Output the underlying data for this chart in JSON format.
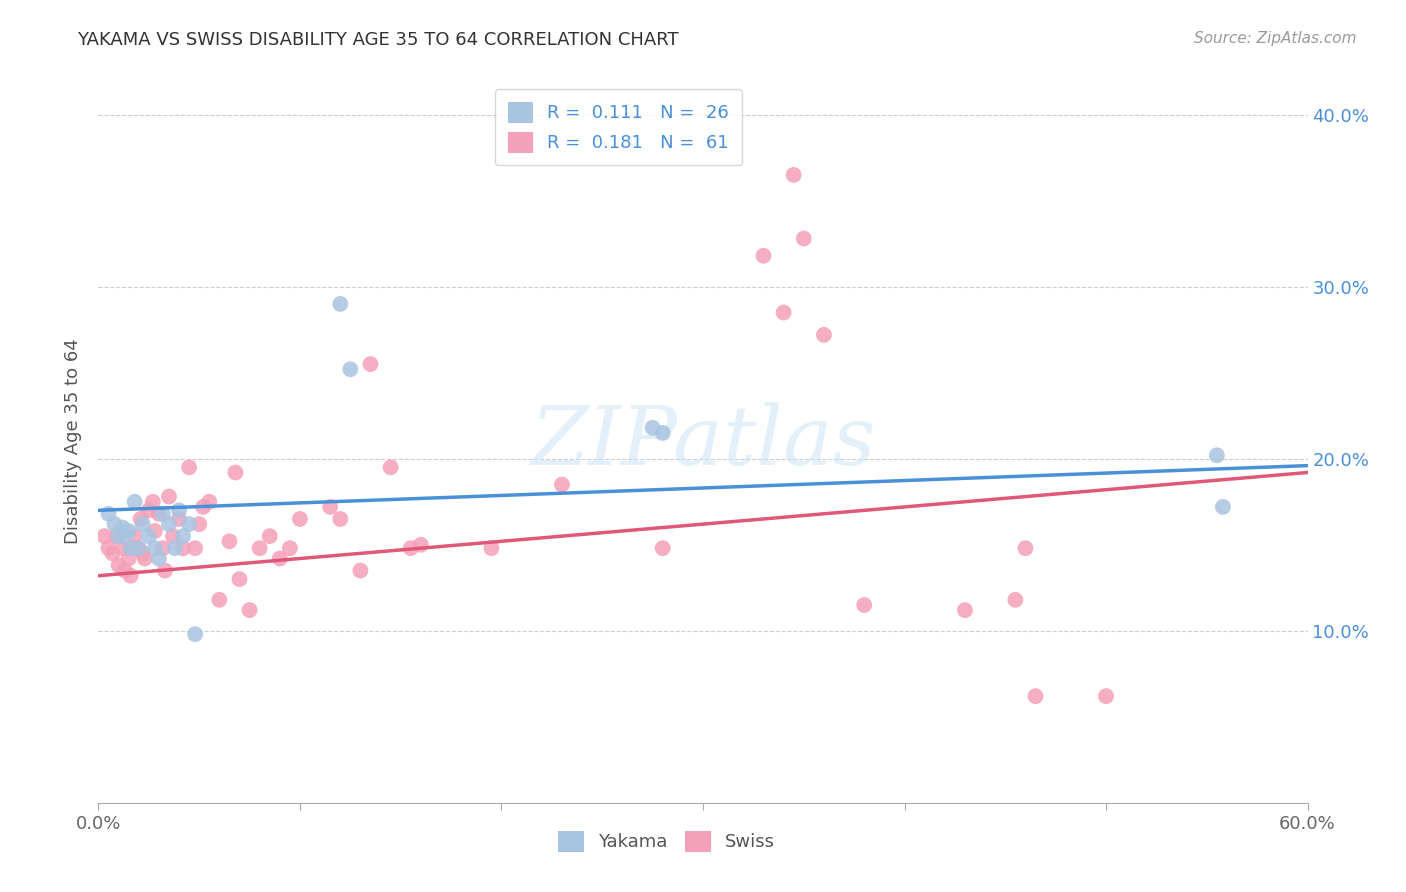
{
  "title": "YAKAMA VS SWISS DISABILITY AGE 35 TO 64 CORRELATION CHART",
  "source": "Source: ZipAtlas.com",
  "ylabel": "Disability Age 35 to 64",
  "xlim": [
    0.0,
    0.6
  ],
  "ylim": [
    0.0,
    0.42
  ],
  "xticks": [
    0.0,
    0.1,
    0.2,
    0.3,
    0.4,
    0.5,
    0.6
  ],
  "xtick_labels": [
    "0.0%",
    "",
    "",
    "",
    "",
    "",
    "60.0%"
  ],
  "yticks": [
    0.1,
    0.2,
    0.3,
    0.4
  ],
  "ytick_labels_right": [
    "10.0%",
    "20.0%",
    "30.0%",
    "40.0%"
  ],
  "legend_r_yakama": "0.111",
  "legend_n_yakama": "26",
  "legend_r_swiss": "0.181",
  "legend_n_swiss": "61",
  "yakama_color": "#a8c4e0",
  "swiss_color": "#f4a0b8",
  "line_yakama_color": "#4a90d9",
  "line_swiss_color": "#e05878",
  "watermark": "ZIPatlas",
  "yakama_x": [
    0.005,
    0.008,
    0.01,
    0.012,
    0.013,
    0.015,
    0.016,
    0.018,
    0.02,
    0.022,
    0.025,
    0.028,
    0.03,
    0.032,
    0.035,
    0.038,
    0.04,
    0.042,
    0.045,
    0.048,
    0.12,
    0.125,
    0.275,
    0.28,
    0.555,
    0.558
  ],
  "yakama_y": [
    0.168,
    0.162,
    0.155,
    0.16,
    0.155,
    0.158,
    0.148,
    0.175,
    0.148,
    0.162,
    0.155,
    0.148,
    0.142,
    0.168,
    0.162,
    0.148,
    0.17,
    0.155,
    0.162,
    0.098,
    0.29,
    0.252,
    0.218,
    0.215,
    0.202,
    0.172
  ],
  "swiss_x": [
    0.003,
    0.005,
    0.007,
    0.009,
    0.01,
    0.012,
    0.013,
    0.015,
    0.016,
    0.017,
    0.018,
    0.02,
    0.021,
    0.022,
    0.023,
    0.025,
    0.027,
    0.028,
    0.03,
    0.032,
    0.033,
    0.035,
    0.037,
    0.04,
    0.042,
    0.045,
    0.048,
    0.05,
    0.052,
    0.055,
    0.06,
    0.065,
    0.068,
    0.07,
    0.075,
    0.08,
    0.085,
    0.09,
    0.095,
    0.1,
    0.115,
    0.12,
    0.13,
    0.135,
    0.145,
    0.155,
    0.16,
    0.195,
    0.23,
    0.28,
    0.33,
    0.34,
    0.345,
    0.35,
    0.36,
    0.38,
    0.43,
    0.455,
    0.46,
    0.465,
    0.5
  ],
  "swiss_y": [
    0.155,
    0.148,
    0.145,
    0.155,
    0.138,
    0.148,
    0.135,
    0.142,
    0.132,
    0.148,
    0.155,
    0.148,
    0.165,
    0.145,
    0.142,
    0.17,
    0.175,
    0.158,
    0.168,
    0.148,
    0.135,
    0.178,
    0.155,
    0.165,
    0.148,
    0.195,
    0.148,
    0.162,
    0.172,
    0.175,
    0.118,
    0.152,
    0.192,
    0.13,
    0.112,
    0.148,
    0.155,
    0.142,
    0.148,
    0.165,
    0.172,
    0.165,
    0.135,
    0.255,
    0.195,
    0.148,
    0.15,
    0.148,
    0.185,
    0.148,
    0.318,
    0.285,
    0.365,
    0.328,
    0.272,
    0.115,
    0.112,
    0.118,
    0.148,
    0.062,
    0.062
  ],
  "line_yakama_x0": 0.0,
  "line_yakama_x1": 0.6,
  "line_yakama_y0": 0.17,
  "line_yakama_y1": 0.196,
  "line_swiss_x0": 0.0,
  "line_swiss_x1": 0.6,
  "line_swiss_y0": 0.132,
  "line_swiss_y1": 0.192
}
